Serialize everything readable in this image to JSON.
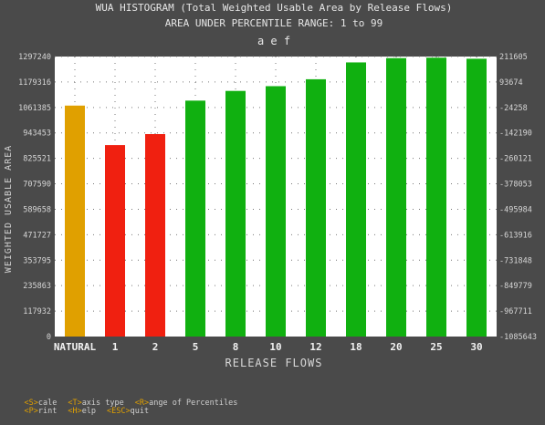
{
  "chart_data": {
    "type": "bar",
    "title": "WUA HISTOGRAM (Total Weighted Usable Area by Release Flows)",
    "subtitle": "AREA UNDER PERCENTILE RANGE: 1 to 99",
    "title3": "a e f",
    "xlabel": "RELEASE FLOWS",
    "ylabel": "WEIGHTED USABLE AREA",
    "ylim": [
      0,
      1297240
    ],
    "y_ticks": [
      "0",
      "117932",
      "235863",
      "353795",
      "471727",
      "589658",
      "707590",
      "825521",
      "943453",
      "1061385",
      "1179316",
      "1297240"
    ],
    "y2_ticks": [
      "-1085643",
      "-967711",
      "-849779",
      "-731848",
      "-613916",
      "-495984",
      "-378053",
      "-260121",
      "-142190",
      "-24258",
      "93674",
      "211605"
    ],
    "categories": [
      "NATURAL",
      "1",
      "2",
      "5",
      "8",
      "10",
      "12",
      "18",
      "20",
      "25",
      "30"
    ],
    "values": [
      1070000,
      887000,
      938000,
      1093000,
      1138000,
      1160000,
      1192000,
      1270000,
      1290000,
      1292000,
      1287000
    ],
    "bar_colors": [
      "#e0a000",
      "#f02010",
      "#f02010",
      "#10b010",
      "#10b010",
      "#10b010",
      "#10b010",
      "#10b010",
      "#10b010",
      "#10b010",
      "#10b010"
    ],
    "grid": true,
    "plot_background": "#ffffff"
  },
  "help": {
    "row1": [
      {
        "key": "<S>",
        "text": "cale"
      },
      {
        "key": "<T>",
        "text": "axis type"
      },
      {
        "key": "<R>",
        "text": "ange of Percentiles"
      }
    ],
    "row2": [
      {
        "key": "<P>",
        "text": "rint"
      },
      {
        "key": "<H>",
        "text": "elp"
      },
      {
        "key": "<ESC>",
        "text": "quit"
      }
    ]
  }
}
